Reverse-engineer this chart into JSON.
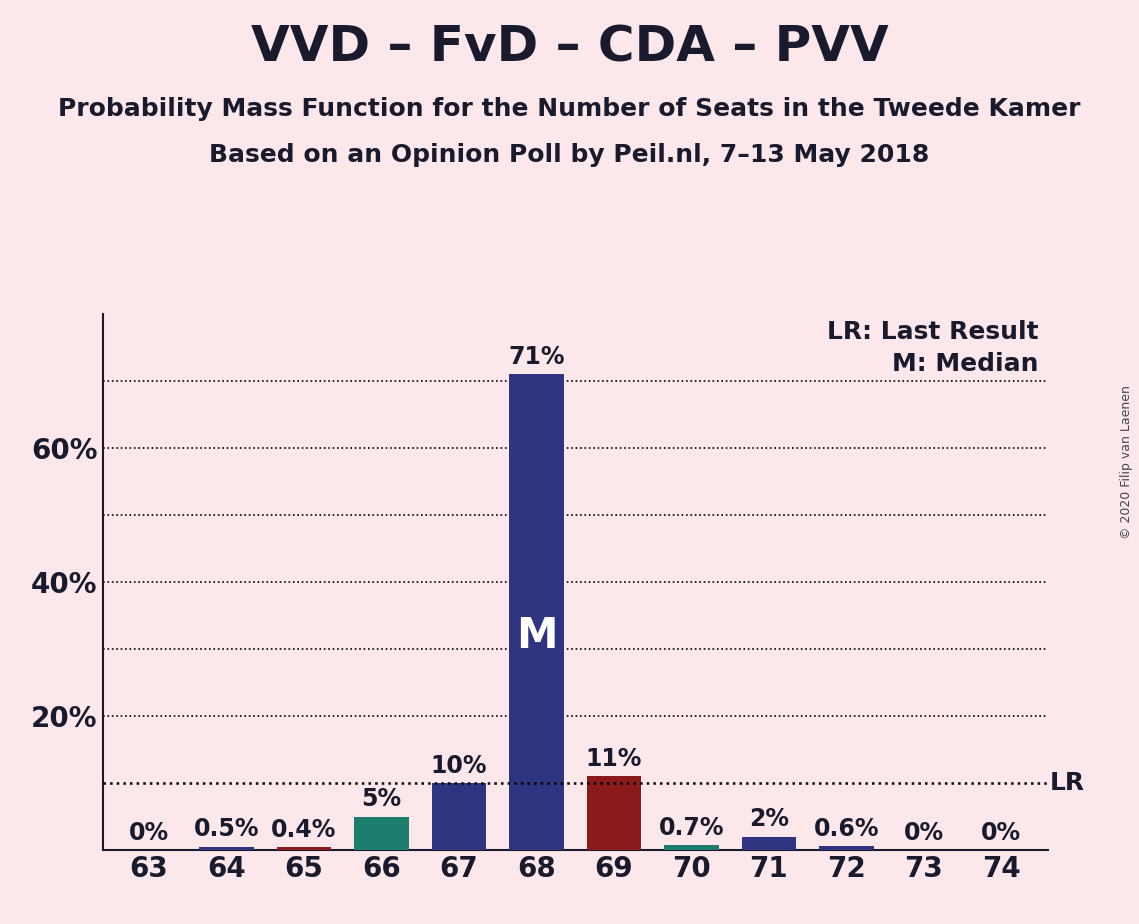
{
  "title": "VVD – FvD – CDA – PVV",
  "subtitle1": "Probability Mass Function for the Number of Seats in the Tweede Kamer",
  "subtitle2": "Based on an Opinion Poll by Peil.nl, 7–13 May 2018",
  "copyright": "© 2020 Filip van Laenen",
  "x_values": [
    63,
    64,
    65,
    66,
    67,
    68,
    69,
    70,
    71,
    72,
    73,
    74
  ],
  "y_values": [
    0.0,
    0.5,
    0.4,
    5.0,
    10.0,
    71.0,
    11.0,
    0.7,
    2.0,
    0.6,
    0.0,
    0.0
  ],
  "bar_colors": [
    "#2e3480",
    "#2e3480",
    "#8b1a1a",
    "#1e7e6e",
    "#2e3480",
    "#2e3480",
    "#8b1a1a",
    "#1e7e6e",
    "#2e3480",
    "#2e3480",
    "#2e3480",
    "#2e3480"
  ],
  "bar_labels": [
    "0%",
    "0.5%",
    "0.4%",
    "5%",
    "10%",
    "71%",
    "11%",
    "0.7%",
    "2%",
    "0.6%",
    "0%",
    "0%"
  ],
  "median_bar_index": 5,
  "median_label": "M",
  "lr_value": 10.0,
  "lr_label": "LR",
  "lr_legend": "LR: Last Result",
  "m_legend": "M: Median",
  "background_color": "#fce8ea",
  "ylim": [
    0,
    80
  ],
  "title_fontsize": 36,
  "subtitle_fontsize": 18,
  "label_fontsize": 17,
  "tick_fontsize": 20,
  "legend_fontsize": 18,
  "median_fontsize": 30
}
